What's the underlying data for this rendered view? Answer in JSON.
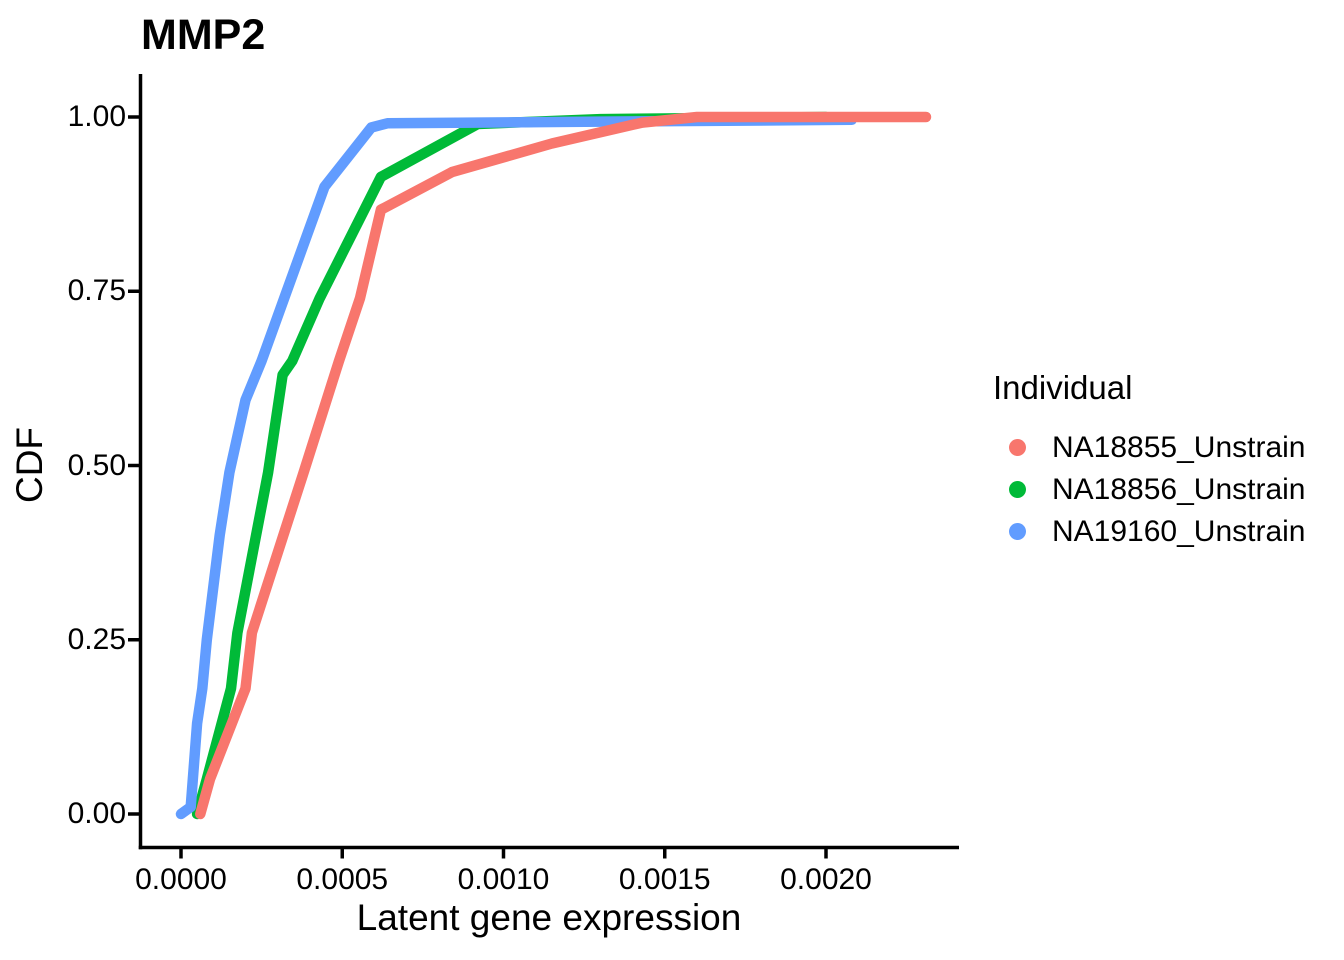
{
  "chart_data": {
    "type": "line",
    "subtype": "ecdf",
    "title": "MMP2",
    "xlabel": "Latent gene expression",
    "ylabel": "CDF",
    "xlim": [
      0,
      0.00231
    ],
    "ylim": [
      0,
      1.0
    ],
    "grid": false,
    "axis_color": "#000000",
    "x_ticks": {
      "values": [
        0.0,
        0.0005,
        0.001,
        0.0015,
        0.002
      ],
      "labels": [
        "0.0000",
        "0.0005",
        "0.0010",
        "0.0015",
        "0.0020"
      ]
    },
    "y_ticks": {
      "values": [
        0.0,
        0.25,
        0.5,
        0.75,
        1.0
      ],
      "labels": [
        "0.00",
        "0.25",
        "0.50",
        "0.75",
        "1.00"
      ]
    },
    "legend": {
      "title": "Individual",
      "position": "right",
      "entries": [
        {
          "label": "NA18855_Unstrain",
          "color": "#F8766D"
        },
        {
          "label": "NA18856_Unstrain",
          "color": "#00BA38"
        },
        {
          "label": "NA19160_Unstrain",
          "color": "#619CFF"
        }
      ]
    },
    "series": [
      {
        "name": "NA18855_Unstrain",
        "color": "#F8766D",
        "points": [
          [
            6e-05,
            0.0
          ],
          [
            9e-05,
            0.05
          ],
          [
            0.0002,
            0.18
          ],
          [
            0.00022,
            0.26
          ],
          [
            0.00038,
            0.49
          ],
          [
            0.00049,
            0.65
          ],
          [
            0.000555,
            0.74
          ],
          [
            0.00062,
            0.867
          ],
          [
            0.00084,
            0.921
          ],
          [
            0.00115,
            0.962
          ],
          [
            0.00143,
            0.992
          ],
          [
            0.0016,
            1.0
          ],
          [
            0.00231,
            1.0
          ]
        ]
      },
      {
        "name": "NA18856_Unstrain",
        "color": "#00BA38",
        "points": [
          [
            5e-05,
            0.0
          ],
          [
            8e-05,
            0.05
          ],
          [
            0.000155,
            0.18
          ],
          [
            0.000175,
            0.26
          ],
          [
            0.00027,
            0.49
          ],
          [
            0.000315,
            0.63
          ],
          [
            0.000345,
            0.65
          ],
          [
            0.00043,
            0.74
          ],
          [
            0.00062,
            0.914
          ],
          [
            0.00092,
            0.99
          ],
          [
            0.0013,
            0.997
          ],
          [
            0.002,
            1.0
          ]
        ]
      },
      {
        "name": "NA19160_Unstrain",
        "color": "#619CFF",
        "points": [
          [
            0.0,
            0.0
          ],
          [
            3e-05,
            0.01
          ],
          [
            5e-05,
            0.13
          ],
          [
            6.6e-05,
            0.18
          ],
          [
            8e-05,
            0.25
          ],
          [
            0.00012,
            0.4
          ],
          [
            0.00015,
            0.49
          ],
          [
            0.0002,
            0.594
          ],
          [
            0.00025,
            0.65
          ],
          [
            0.00032,
            0.74
          ],
          [
            0.000445,
            0.9
          ],
          [
            0.00059,
            0.985
          ],
          [
            0.00064,
            0.991
          ],
          [
            0.0012,
            0.993
          ],
          [
            0.00208,
            0.996
          ]
        ]
      }
    ]
  }
}
